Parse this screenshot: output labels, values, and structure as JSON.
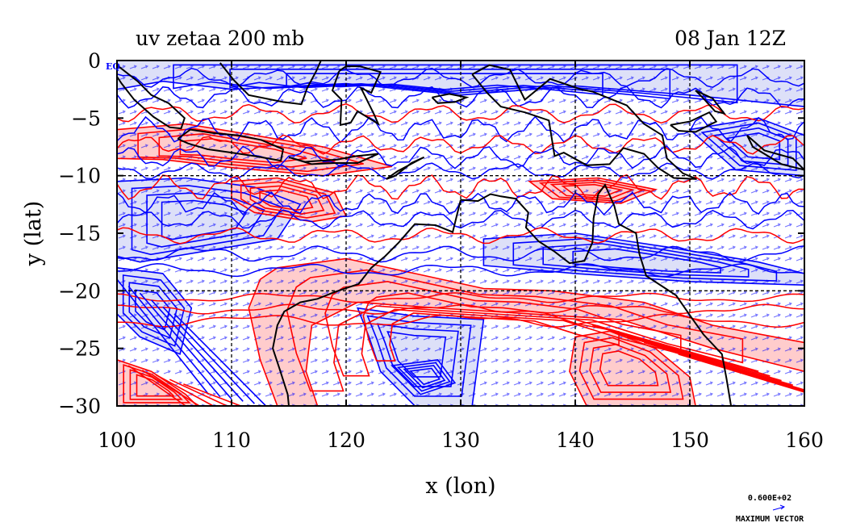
{
  "chart_data": {
    "type": "contour",
    "title": "uv zetaa 200 mb",
    "subtitle": "08 Jan 12Z",
    "xlabel": "x (lon)",
    "ylabel": "y (lat)",
    "xlim": [
      100,
      160
    ],
    "ylim": [
      -30,
      0
    ],
    "x_ticks": [
      100,
      110,
      120,
      130,
      140,
      150,
      160
    ],
    "y_ticks": [
      0,
      -5,
      -10,
      -15,
      -20,
      -25,
      -30
    ],
    "x_tick_labels": [
      "100",
      "110",
      "120",
      "130",
      "140",
      "150",
      "160"
    ],
    "y_tick_labels": [
      "0",
      "−5",
      "−10",
      "−15",
      "−20",
      "−25",
      "−30"
    ],
    "grid": true,
    "grid_x": [
      110,
      120,
      130,
      140,
      150
    ],
    "grid_y": [
      -10,
      -20
    ],
    "corner_label": "EQ",
    "vector_legend": {
      "value": "0.600E+02",
      "label": "MAXIMUM VECTOR"
    },
    "colors": {
      "positive_contour": "#ff0000",
      "negative_contour": "#0000ff",
      "positive_fill": "#ffcccc",
      "negative_fill": "#dde0f8",
      "coastline": "#000000",
      "wind_vector": "#0000ff"
    },
    "coastline_australia": [
      [
        130.0,
        -12.1
      ],
      [
        131.5,
        -12.2
      ],
      [
        132.6,
        -11.6
      ],
      [
        133.5,
        -11.8
      ],
      [
        134.8,
        -12.0
      ],
      [
        135.9,
        -13.2
      ],
      [
        135.7,
        -14.5
      ],
      [
        136.8,
        -15.7
      ],
      [
        138.2,
        -16.6
      ],
      [
        139.5,
        -17.6
      ],
      [
        140.8,
        -17.4
      ],
      [
        141.5,
        -15.8
      ],
      [
        141.6,
        -13.7
      ],
      [
        142.0,
        -11.6
      ],
      [
        142.6,
        -10.8
      ],
      [
        143.4,
        -12.6
      ],
      [
        143.8,
        -14.2
      ],
      [
        145.3,
        -15.0
      ],
      [
        145.6,
        -16.8
      ],
      [
        146.2,
        -18.7
      ],
      [
        148.8,
        -20.4
      ],
      [
        150.2,
        -22.4
      ],
      [
        151.2,
        -23.8
      ],
      [
        152.8,
        -25.5
      ],
      [
        153.2,
        -27.6
      ],
      [
        153.6,
        -30.0
      ]
    ],
    "coastline_west": [
      [
        130.0,
        -12.1
      ],
      [
        129.3,
        -14.9
      ],
      [
        127.8,
        -14.3
      ],
      [
        126.0,
        -14.2
      ],
      [
        124.6,
        -15.8
      ],
      [
        123.4,
        -17.0
      ],
      [
        122.2,
        -18.0
      ],
      [
        121.1,
        -19.4
      ],
      [
        119.0,
        -20.1
      ],
      [
        117.5,
        -20.7
      ],
      [
        116.0,
        -21.0
      ],
      [
        114.6,
        -21.8
      ],
      [
        114.0,
        -23.0
      ],
      [
        113.6,
        -25.0
      ],
      [
        114.2,
        -26.8
      ],
      [
        114.9,
        -29.0
      ],
      [
        115.0,
        -30.0
      ]
    ],
    "coastline_new_guinea": [
      [
        131.0,
        -1.2
      ],
      [
        132.5,
        -0.4
      ],
      [
        134.3,
        -0.8
      ],
      [
        135.6,
        -3.4
      ],
      [
        137.8,
        -1.6
      ],
      [
        140.5,
        -2.5
      ],
      [
        141.5,
        -2.7
      ],
      [
        144.5,
        -3.9
      ],
      [
        146.0,
        -5.5
      ],
      [
        147.6,
        -6.5
      ],
      [
        148.0,
        -8.5
      ],
      [
        149.4,
        -9.8
      ],
      [
        150.6,
        -10.3
      ],
      [
        148.6,
        -10.2
      ],
      [
        147.2,
        -9.3
      ],
      [
        146.0,
        -8.1
      ],
      [
        144.2,
        -7.6
      ],
      [
        143.0,
        -9.0
      ],
      [
        141.0,
        -9.1
      ],
      [
        139.0,
        -8.0
      ],
      [
        138.2,
        -8.3
      ],
      [
        137.7,
        -5.2
      ],
      [
        135.6,
        -4.5
      ],
      [
        133.5,
        -4.0
      ],
      [
        132.3,
        -2.8
      ],
      [
        131.0,
        -1.2
      ]
    ],
    "coastline_java": [
      [
        105.3,
        -6.8
      ],
      [
        106.4,
        -6.0
      ],
      [
        108.4,
        -6.3
      ],
      [
        110.6,
        -6.5
      ],
      [
        112.6,
        -6.9
      ],
      [
        114.5,
        -7.7
      ],
      [
        114.3,
        -8.7
      ],
      [
        112.0,
        -8.3
      ],
      [
        110.0,
        -8.0
      ],
      [
        107.9,
        -7.7
      ],
      [
        106.2,
        -7.2
      ],
      [
        105.3,
        -6.8
      ]
    ],
    "coastline_sumatra": [
      [
        100.0,
        -0.4
      ],
      [
        101.8,
        -1.8
      ],
      [
        103.0,
        -3.0
      ],
      [
        104.5,
        -3.7
      ],
      [
        105.9,
        -5.0
      ],
      [
        105.6,
        -5.9
      ],
      [
        104.6,
        -5.8
      ],
      [
        103.2,
        -4.9
      ],
      [
        101.5,
        -3.4
      ],
      [
        100.4,
        -2.0
      ],
      [
        100.0,
        -1.4
      ]
    ],
    "coastline_sulawesi": [
      [
        119.4,
        -0.9
      ],
      [
        120.0,
        -0.5
      ],
      [
        121.2,
        -0.5
      ],
      [
        123.0,
        -1.0
      ],
      [
        122.2,
        -2.8
      ],
      [
        121.3,
        -2.4
      ],
      [
        122.4,
        -4.6
      ],
      [
        122.8,
        -5.5
      ],
      [
        121.0,
        -4.4
      ],
      [
        120.4,
        -5.4
      ],
      [
        119.5,
        -5.6
      ],
      [
        119.6,
        -3.4
      ],
      [
        118.8,
        -2.6
      ],
      [
        119.4,
        -0.9
      ]
    ],
    "coastline_borneo": [
      [
        109.0,
        -0.2
      ],
      [
        110.2,
        -1.7
      ],
      [
        111.5,
        -3.0
      ],
      [
        114.5,
        -3.6
      ],
      [
        116.1,
        -3.8
      ],
      [
        116.6,
        -2.4
      ],
      [
        117.4,
        -0.9
      ],
      [
        117.8,
        0.0
      ]
    ],
    "coastline_timor": [
      [
        123.5,
        -10.3
      ],
      [
        124.5,
        -9.6
      ],
      [
        126.8,
        -8.4
      ],
      [
        125.7,
        -8.9
      ],
      [
        124.3,
        -10.0
      ],
      [
        123.5,
        -10.3
      ]
    ],
    "coastline_lesser_sunda": [
      [
        115.0,
        -8.4
      ],
      [
        116.4,
        -8.8
      ],
      [
        117.8,
        -8.7
      ],
      [
        119.2,
        -8.6
      ],
      [
        120.9,
        -8.3
      ],
      [
        122.8,
        -8.1
      ],
      [
        121.0,
        -8.9
      ],
      [
        119.0,
        -8.9
      ],
      [
        117.0,
        -9.0
      ],
      [
        115.0,
        -8.4
      ]
    ],
    "coastline_seram": [
      [
        127.5,
        -3.2
      ],
      [
        129.0,
        -2.9
      ],
      [
        130.5,
        -3.2
      ],
      [
        129.5,
        -3.6
      ],
      [
        128.0,
        -3.7
      ],
      [
        127.5,
        -3.2
      ]
    ],
    "coastline_new_britain": [
      [
        148.3,
        -5.6
      ],
      [
        150.0,
        -5.3
      ],
      [
        151.7,
        -4.5
      ],
      [
        152.3,
        -5.3
      ],
      [
        150.5,
        -6.2
      ],
      [
        149.0,
        -6.1
      ],
      [
        148.3,
        -5.6
      ]
    ],
    "coastline_solomons": [
      [
        155.0,
        -6.5
      ],
      [
        156.5,
        -7.8
      ],
      [
        159.0,
        -8.5
      ],
      [
        160.0,
        -9.5
      ],
      [
        158.0,
        -9.0
      ],
      [
        155.5,
        -7.5
      ],
      [
        155.0,
        -6.5
      ]
    ],
    "coastline_new_ireland": [
      [
        150.5,
        -2.6
      ],
      [
        152.0,
        -3.3
      ],
      [
        153.0,
        -4.6
      ],
      [
        152.2,
        -4.4
      ],
      [
        151.2,
        -3.3
      ],
      [
        150.5,
        -2.6
      ]
    ],
    "positive_regions": [
      {
        "poly": [
          [
            114.0,
            -18.0
          ],
          [
            120.0,
            -17.2
          ],
          [
            126.0,
            -18.5
          ],
          [
            132.0,
            -19.8
          ],
          [
            138.0,
            -20.0
          ],
          [
            146.0,
            -21.0
          ],
          [
            152.0,
            -23.0
          ],
          [
            160.0,
            -24.5
          ],
          [
            160.0,
            -27.0
          ],
          [
            152.0,
            -25.0
          ],
          [
            144.0,
            -22.5
          ],
          [
            136.0,
            -22.0
          ],
          [
            128.0,
            -21.5
          ],
          [
            121.0,
            -21.0
          ],
          [
            117.0,
            -23.0
          ],
          [
            116.5,
            -27.0
          ],
          [
            117.5,
            -30.0
          ],
          [
            114.0,
            -30.0
          ],
          [
            112.5,
            -26.0
          ],
          [
            111.5,
            -21.5
          ],
          [
            112.5,
            -19.0
          ]
        ]
      },
      {
        "poly": [
          [
            140.0,
            -24.0
          ],
          [
            143.0,
            -23.5
          ],
          [
            147.0,
            -25.0
          ],
          [
            150.0,
            -27.5
          ],
          [
            150.5,
            -30.0
          ],
          [
            141.0,
            -30.0
          ],
          [
            139.5,
            -27.0
          ]
        ]
      },
      {
        "poly": [
          [
            100.0,
            -26.0
          ],
          [
            103.0,
            -27.0
          ],
          [
            106.0,
            -29.0
          ],
          [
            107.0,
            -30.0
          ],
          [
            100.0,
            -30.0
          ]
        ]
      },
      {
        "poly": [
          [
            100.0,
            -6.0
          ],
          [
            106.0,
            -5.5
          ],
          [
            112.0,
            -6.5
          ],
          [
            118.0,
            -7.5
          ],
          [
            124.0,
            -9.2
          ],
          [
            118.0,
            -10.0
          ],
          [
            110.0,
            -9.3
          ],
          [
            104.0,
            -8.6
          ],
          [
            100.0,
            -8.5
          ]
        ]
      },
      {
        "poly": [
          [
            110.0,
            -10.5
          ],
          [
            114.0,
            -10.2
          ],
          [
            119.0,
            -11.5
          ],
          [
            120.0,
            -13.5
          ],
          [
            117.0,
            -14.0
          ],
          [
            112.0,
            -13.2
          ],
          [
            110.0,
            -12.0
          ]
        ]
      },
      {
        "poly": [
          [
            136.0,
            -10.5
          ],
          [
            142.0,
            -10.2
          ],
          [
            147.0,
            -11.2
          ],
          [
            144.0,
            -12.4
          ],
          [
            138.0,
            -12.0
          ]
        ]
      }
    ],
    "negative_regions": [
      {
        "poly": [
          [
            100.0,
            -18.0
          ],
          [
            104.0,
            -18.5
          ],
          [
            106.5,
            -21.5
          ],
          [
            105.5,
            -25.5
          ],
          [
            102.0,
            -24.0
          ],
          [
            100.0,
            -22.0
          ]
        ]
      },
      {
        "poly": [
          [
            121.0,
            -21.5
          ],
          [
            126.0,
            -22.2
          ],
          [
            132.0,
            -22.5
          ],
          [
            131.0,
            -30.0
          ],
          [
            126.0,
            -30.0
          ],
          [
            123.0,
            -27.0
          ],
          [
            122.0,
            -24.0
          ]
        ]
      },
      {
        "poly": [
          [
            100.0,
            -10.5
          ],
          [
            106.0,
            -10.2
          ],
          [
            112.0,
            -11.0
          ],
          [
            116.0,
            -12.5
          ],
          [
            114.0,
            -15.5
          ],
          [
            108.0,
            -16.5
          ],
          [
            102.0,
            -17.5
          ],
          [
            100.0,
            -17.0
          ]
        ]
      },
      {
        "poly": [
          [
            132.0,
            -15.5
          ],
          [
            140.0,
            -15.0
          ],
          [
            148.0,
            -16.2
          ],
          [
            156.0,
            -17.5
          ],
          [
            160.0,
            -18.5
          ],
          [
            160.0,
            -19.5
          ],
          [
            150.0,
            -19.2
          ],
          [
            140.0,
            -18.5
          ],
          [
            132.0,
            -17.8
          ]
        ]
      },
      {
        "poly": [
          [
            100.0,
            0.0
          ],
          [
            160.0,
            0.0
          ],
          [
            160.0,
            -4.0
          ],
          [
            150.0,
            -3.0
          ],
          [
            140.0,
            -2.2
          ],
          [
            130.0,
            -3.0
          ],
          [
            120.0,
            -2.0
          ],
          [
            110.0,
            -2.5
          ],
          [
            104.0,
            -1.8
          ],
          [
            100.0,
            -2.5
          ]
        ]
      },
      {
        "poly": [
          [
            150.0,
            -6.0
          ],
          [
            156.0,
            -5.0
          ],
          [
            160.0,
            -6.5
          ],
          [
            160.0,
            -10.0
          ],
          [
            154.0,
            -9.5
          ]
        ]
      },
      {
        "poly": [
          [
            124.0,
            -26.5
          ],
          [
            128.0,
            -26.0
          ],
          [
            129.5,
            -28.0
          ],
          [
            126.5,
            -29.0
          ]
        ]
      }
    ]
  }
}
